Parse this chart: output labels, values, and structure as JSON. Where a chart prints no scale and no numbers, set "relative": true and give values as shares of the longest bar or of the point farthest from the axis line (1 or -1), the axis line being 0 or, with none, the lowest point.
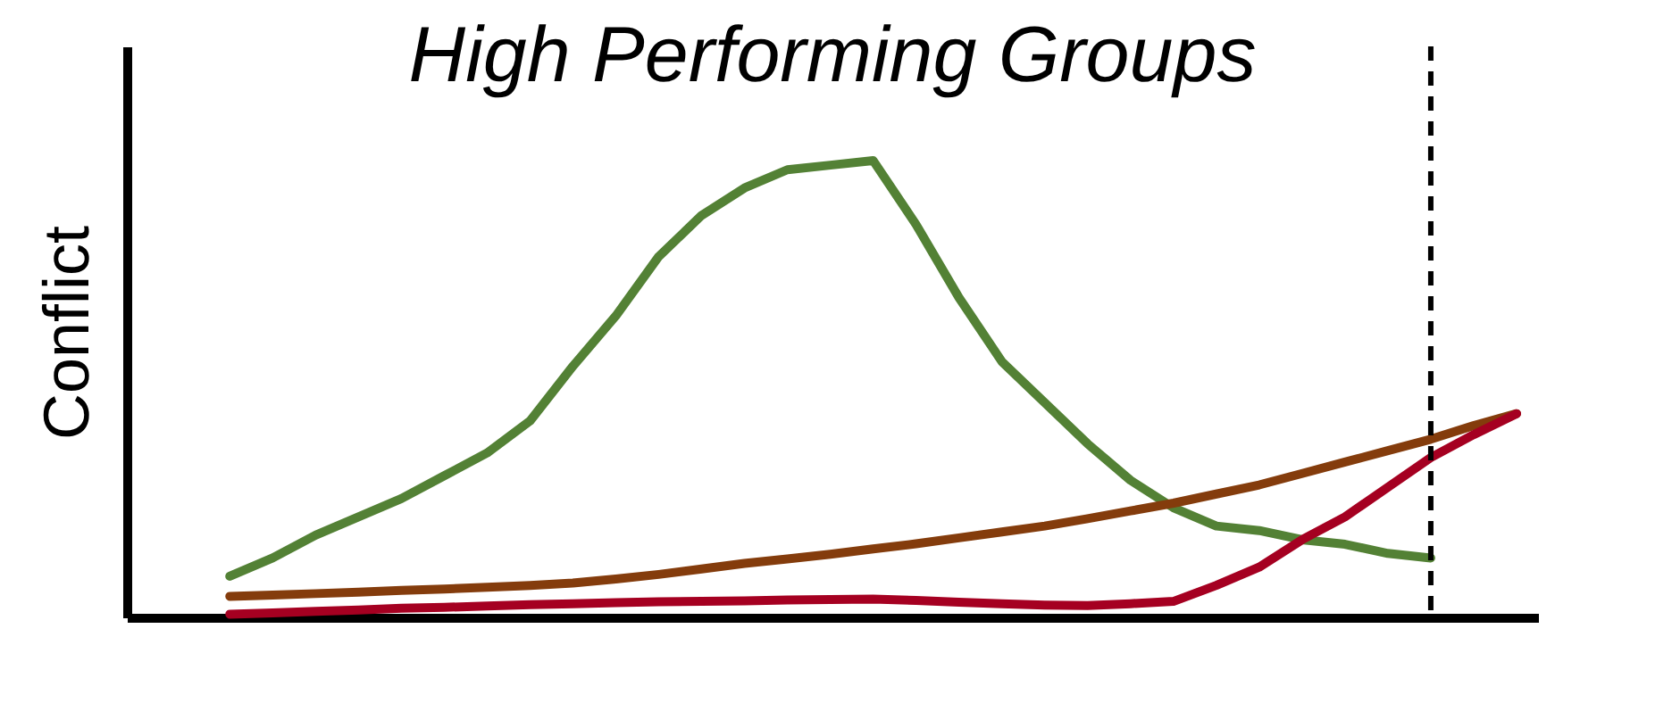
{
  "chart_data": {
    "type": "line",
    "title": "High Performing Groups",
    "ylabel": "Conflict",
    "relative": true,
    "grid": false,
    "marker": "none",
    "line_style": "solid",
    "categories": [
      null,
      null,
      null,
      null,
      null,
      null,
      null,
      null,
      null,
      null,
      null,
      null,
      null,
      null,
      null,
      null,
      null,
      null,
      null,
      null,
      null,
      null,
      null,
      null,
      null,
      null,
      null,
      null,
      null,
      null,
      null
    ],
    "series": [
      {
        "color": "#538135",
        "values": [
          0.09,
          0.13,
          0.18,
          0.22,
          0.26,
          0.31,
          0.36,
          0.43,
          0.55,
          0.66,
          0.79,
          0.88,
          0.94,
          0.98,
          0.99,
          1.0,
          0.86,
          0.7,
          0.56,
          0.47,
          0.38,
          0.3,
          0.24,
          0.2,
          0.19,
          0.17,
          0.16,
          0.14,
          0.13,
          null,
          null
        ]
      },
      {
        "color": "#843c0c",
        "values": [
          0.046,
          0.049,
          0.052,
          0.055,
          0.059,
          0.062,
          0.066,
          0.07,
          0.075,
          0.084,
          0.094,
          0.106,
          0.118,
          0.128,
          0.138,
          0.15,
          0.161,
          0.174,
          0.187,
          0.2,
          0.216,
          0.233,
          0.25,
          0.27,
          0.29,
          0.315,
          0.34,
          0.365,
          0.39,
          0.42,
          0.446
        ]
      },
      {
        "color": "#a50021",
        "values": [
          0.007,
          0.01,
          0.013,
          0.016,
          0.02,
          0.022,
          0.025,
          0.028,
          0.03,
          0.032,
          0.034,
          0.035,
          0.036,
          0.038,
          0.039,
          0.04,
          0.037,
          0.033,
          0.03,
          0.027,
          0.026,
          0.03,
          0.035,
          0.07,
          0.11,
          0.17,
          0.22,
          0.285,
          0.35,
          0.4,
          0.446
        ]
      }
    ]
  }
}
